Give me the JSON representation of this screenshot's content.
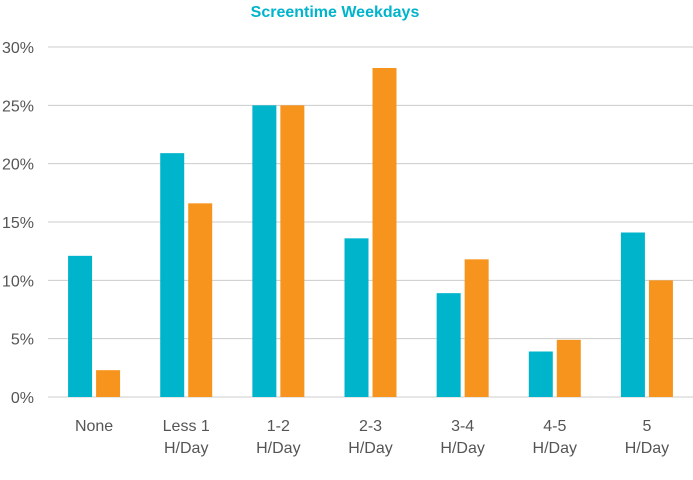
{
  "chart_data": {
    "type": "bar",
    "title": "Screentime Weekdays",
    "categories": [
      [
        "None"
      ],
      [
        "Less 1",
        "H/Day"
      ],
      [
        "1-2",
        "H/Day"
      ],
      [
        "2-3",
        "H/Day"
      ],
      [
        "3-4",
        "H/Day"
      ],
      [
        "4-5",
        "H/Day"
      ],
      [
        "5",
        "H/Day"
      ]
    ],
    "series": [
      {
        "color": "#00b4cc",
        "values": [
          12.1,
          20.9,
          25.0,
          13.6,
          8.9,
          3.9,
          14.1
        ]
      },
      {
        "color": "#f7941d",
        "values": [
          2.3,
          16.6,
          25.0,
          28.2,
          11.8,
          4.9,
          10.0
        ]
      }
    ],
    "ylim": [
      0,
      30
    ],
    "yticks": [
      0,
      5,
      10,
      15,
      20,
      25,
      30
    ],
    "ytick_labels": [
      "0%",
      "5%",
      "10%",
      "15%",
      "20%",
      "25%",
      "30%"
    ],
    "title_color": "#00b4cc",
    "grid": true
  }
}
